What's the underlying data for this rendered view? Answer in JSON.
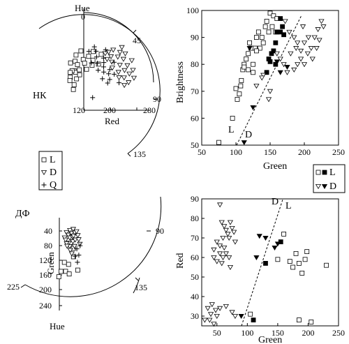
{
  "panels": {
    "hk_label": "НК",
    "df_label": "ДФ"
  },
  "chart_data": [
    {
      "type": "scatter",
      "panel": "top-left polar (НК)",
      "angular_axis": {
        "label": "Hue",
        "ticks": [
          "0",
          "45",
          "90",
          "135"
        ]
      },
      "radial_axis": {
        "label": "Red",
        "ticks": [
          "120",
          "200",
          "280"
        ],
        "range": [
          120,
          280
        ]
      },
      "series": [
        {
          "name": "L",
          "marker": "open-square",
          "points": [
            [
              2,
              150
            ],
            [
              3,
              162
            ],
            [
              4,
              170
            ],
            [
              6,
              148
            ],
            [
              8,
              158
            ],
            [
              10,
              176
            ],
            [
              12,
              140
            ],
            [
              14,
              152
            ],
            [
              16,
              166
            ],
            [
              18,
              146
            ],
            [
              20,
              162
            ],
            [
              22,
              172
            ],
            [
              25,
              180
            ],
            [
              28,
              156
            ],
            [
              30,
              170
            ],
            [
              33,
              164
            ],
            [
              35,
              182
            ],
            [
              40,
              170
            ],
            [
              -3,
              150
            ],
            [
              -5,
              160
            ],
            [
              -8,
              148
            ],
            [
              -10,
              142
            ],
            [
              -14,
              138
            ],
            [
              5,
              132
            ],
            [
              1,
              126
            ]
          ]
        },
        {
          "name": "D",
          "marker": "open-triangle-down",
          "points": [
            [
              40,
              190
            ],
            [
              42,
              196
            ],
            [
              45,
              188
            ],
            [
              48,
              200
            ],
            [
              50,
              194
            ],
            [
              52,
              204
            ],
            [
              55,
              198
            ],
            [
              58,
              190
            ],
            [
              60,
              206
            ],
            [
              62,
              198
            ],
            [
              65,
              192
            ],
            [
              68,
              202
            ],
            [
              70,
              196
            ],
            [
              72,
              188
            ],
            [
              75,
              200
            ],
            [
              78,
              192
            ],
            [
              80,
              186
            ],
            [
              44,
              182
            ],
            [
              50,
              184
            ],
            [
              56,
              180
            ],
            [
              64,
              184
            ],
            [
              70,
              182
            ],
            [
              38,
              186
            ],
            [
              46,
              206
            ]
          ]
        },
        {
          "name": "Q",
          "marker": "plus",
          "points": [
            [
              20,
              178
            ],
            [
              24,
              186
            ],
            [
              28,
              182
            ],
            [
              32,
              176
            ],
            [
              36,
              190
            ],
            [
              40,
              180
            ],
            [
              44,
              176
            ],
            [
              48,
              172
            ],
            [
              52,
              186
            ],
            [
              56,
              176
            ],
            [
              60,
              172
            ],
            [
              64,
              178
            ],
            [
              68,
              170
            ],
            [
              72,
              166
            ],
            [
              76,
              180
            ],
            [
              30,
              166
            ],
            [
              38,
              170
            ],
            [
              46,
              164
            ],
            [
              54,
              168
            ],
            [
              62,
              162
            ],
            [
              100,
              145
            ]
          ]
        }
      ]
    },
    {
      "type": "scatter",
      "panel": "top-right",
      "xlabel": "Green",
      "ylabel": "Brightness",
      "xlim": [
        50,
        250
      ],
      "ylim": [
        50,
        100
      ],
      "xticks": [
        50,
        100,
        150,
        200,
        250
      ],
      "yticks": [
        50,
        60,
        70,
        80,
        90,
        100
      ],
      "legend": {
        "position": "bottom-right",
        "entries": [
          "L",
          "D"
        ]
      },
      "annotations": [
        "L",
        "D"
      ],
      "series": [
        {
          "name": "L (open)",
          "marker": "open-square",
          "points": [
            [
              75,
              51
            ],
            [
              95,
              60
            ],
            [
              100,
              71
            ],
            [
              102,
              67
            ],
            [
              105,
              69
            ],
            [
              107,
              72
            ],
            [
              108,
              74
            ],
            [
              110,
              78
            ],
            [
              112,
              80
            ],
            [
              115,
              82
            ],
            [
              118,
              84
            ],
            [
              120,
              88
            ],
            [
              122,
              86
            ],
            [
              125,
              80
            ],
            [
              128,
              86
            ],
            [
              130,
              90
            ],
            [
              133,
              92
            ],
            [
              135,
              86
            ],
            [
              138,
              90
            ],
            [
              140,
              88
            ],
            [
              143,
              94
            ],
            [
              145,
              96
            ],
            [
              148,
              92
            ],
            [
              150,
              99
            ],
            [
              153,
              94
            ],
            [
              155,
              98
            ],
            [
              158,
              92
            ],
            [
              160,
              97
            ],
            [
              118,
              78
            ],
            [
              125,
              77
            ],
            [
              130,
              85
            ],
            [
              112,
              79
            ]
          ]
        },
        {
          "name": "L (filled)",
          "marker": "filled-square",
          "points": [
            [
              165,
              97
            ],
            [
              168,
              94
            ],
            [
              160,
              92
            ],
            [
              158,
              88
            ],
            [
              165,
              92
            ],
            [
              170,
              91
            ],
            [
              155,
              85
            ],
            [
              150,
              81
            ],
            [
              152,
              84
            ],
            [
              148,
              82
            ],
            [
              158,
              80
            ],
            [
              145,
              77
            ]
          ]
        },
        {
          "name": "D (open)",
          "marker": "open-triangle-down",
          "points": [
            [
              180,
              84
            ],
            [
              185,
              90
            ],
            [
              190,
              88
            ],
            [
              195,
              85
            ],
            [
              200,
              88
            ],
            [
              205,
              84
            ],
            [
              210,
              86
            ],
            [
              215,
              90
            ],
            [
              220,
              93
            ],
            [
              225,
              96
            ],
            [
              228,
              94
            ],
            [
              222,
              89
            ],
            [
              218,
              86
            ],
            [
              200,
              80
            ],
            [
              195,
              82
            ],
            [
              190,
              80
            ],
            [
              185,
              78
            ],
            [
              175,
              77
            ],
            [
              170,
              80
            ],
            [
              165,
              82
            ],
            [
              160,
              84
            ],
            [
              140,
              76
            ],
            [
              138,
              75
            ],
            [
              130,
              72
            ],
            [
              148,
              67
            ],
            [
              150,
              70
            ],
            [
              172,
              96
            ],
            [
              178,
              92
            ],
            [
              188,
              86
            ],
            [
              198,
              94
            ],
            [
              206,
              90
            ],
            [
              212,
              82
            ]
          ]
        },
        {
          "name": "D (filled)",
          "marker": "filled-triangle-down",
          "points": [
            [
              112,
              51
            ],
            [
              125,
              64
            ],
            [
              160,
              81
            ],
            [
              165,
              77
            ],
            [
              175,
              79
            ],
            [
              120,
              86
            ]
          ]
        }
      ]
    },
    {
      "type": "scatter",
      "panel": "bottom-left polar (ДФ)",
      "angular_axis": {
        "label": "Hue",
        "ticks": [
          "90",
          "135",
          "225"
        ]
      },
      "radial_axis": {
        "label": "Green",
        "ticks": [
          "40",
          "80",
          "120",
          "160",
          "200",
          "240"
        ],
        "range": [
          20,
          240
        ]
      },
      "series": [
        {
          "name": "L",
          "marker": "open-square",
          "points": [
            [
              142,
              125
            ],
            [
              150,
              135
            ],
            [
              155,
              130
            ],
            [
              148,
              145
            ],
            [
              160,
              140
            ],
            [
              138,
              150
            ],
            [
              145,
              115
            ],
            [
              130,
              120
            ],
            [
              120,
              108
            ]
          ]
        },
        {
          "name": "D",
          "marker": "open-triangle-down",
          "points": [
            [
              95,
              80
            ],
            [
              100,
              85
            ],
            [
              105,
              90
            ],
            [
              108,
              78
            ],
            [
              112,
              82
            ],
            [
              115,
              92
            ],
            [
              118,
              88
            ],
            [
              110,
              100
            ],
            [
              102,
              96
            ],
            [
              96,
              92
            ],
            [
              90,
              88
            ],
            [
              120,
              98
            ],
            [
              125,
              104
            ],
            [
              122,
              92
            ],
            [
              116,
              108
            ],
            [
              106,
              104
            ],
            [
              100,
              98
            ],
            [
              94,
              100
            ],
            [
              98,
              108
            ],
            [
              104,
              112
            ],
            [
              110,
              118
            ],
            [
              88,
              96
            ],
            [
              92,
              104
            ],
            [
              128,
              112
            ]
          ]
        },
        {
          "name": "Q",
          "marker": "plus",
          "points": [
            [
              112,
              120
            ],
            [
              118,
              116
            ],
            [
              124,
              128
            ],
            [
              128,
              122
            ],
            [
              132,
              136
            ]
          ]
        }
      ]
    },
    {
      "type": "scatter",
      "panel": "bottom-right",
      "xlabel": "Green",
      "ylabel": "Red",
      "xlim": [
        25,
        250
      ],
      "ylim": [
        25,
        90
      ],
      "xticks": [
        50,
        100,
        150,
        200,
        250
      ],
      "yticks": [
        30,
        40,
        50,
        60,
        70,
        80,
        90
      ],
      "legend": {
        "position": "top-right",
        "entries": [
          "L",
          "D"
        ]
      },
      "annotations": [
        "D",
        "L"
      ],
      "series": [
        {
          "name": "L (open)",
          "marker": "open-square",
          "points": [
            [
              160,
              72
            ],
            [
              170,
              58
            ],
            [
              175,
              55
            ],
            [
              180,
              62
            ],
            [
              185,
              57
            ],
            [
              190,
              52
            ],
            [
              195,
              59
            ],
            [
              198,
              63
            ],
            [
              205,
              27
            ],
            [
              185,
              28
            ],
            [
              230,
              56
            ],
            [
              150,
              59
            ],
            [
              105,
              31
            ]
          ]
        },
        {
          "name": "L (filled)",
          "marker": "filled-square",
          "points": [
            [
              130,
              57
            ],
            [
              155,
              68
            ],
            [
              110,
              28
            ]
          ]
        },
        {
          "name": "D (open)",
          "marker": "open-triangle-down",
          "points": [
            [
              55,
              87
            ],
            [
              58,
              78
            ],
            [
              62,
              76
            ],
            [
              65,
              74
            ],
            [
              68,
              72
            ],
            [
              70,
              70
            ],
            [
              72,
              78
            ],
            [
              75,
              75
            ],
            [
              78,
              73
            ],
            [
              80,
              68
            ],
            [
              60,
              70
            ],
            [
              50,
              68
            ],
            [
              62,
              65
            ],
            [
              65,
              62
            ],
            [
              70,
              60
            ],
            [
              55,
              62
            ],
            [
              60,
              60
            ],
            [
              50,
              58
            ],
            [
              58,
              57
            ],
            [
              45,
              60
            ],
            [
              45,
              64
            ],
            [
              55,
              66
            ],
            [
              35,
              34
            ],
            [
              40,
              31
            ],
            [
              42,
              36
            ],
            [
              48,
              33
            ],
            [
              50,
              30
            ],
            [
              38,
              28
            ],
            [
              45,
              26
            ],
            [
              55,
              34
            ],
            [
              65,
              35
            ],
            [
              75,
              32
            ],
            [
              80,
              30
            ],
            [
              30,
              28
            ],
            [
              72,
              55
            ]
          ]
        },
        {
          "name": "D (filled)",
          "marker": "filled-triangle-down",
          "points": [
            [
              120,
              71
            ],
            [
              130,
              70
            ],
            [
              145,
              65
            ],
            [
              150,
              67
            ],
            [
              115,
              60
            ],
            [
              90,
              30
            ]
          ]
        }
      ]
    }
  ]
}
